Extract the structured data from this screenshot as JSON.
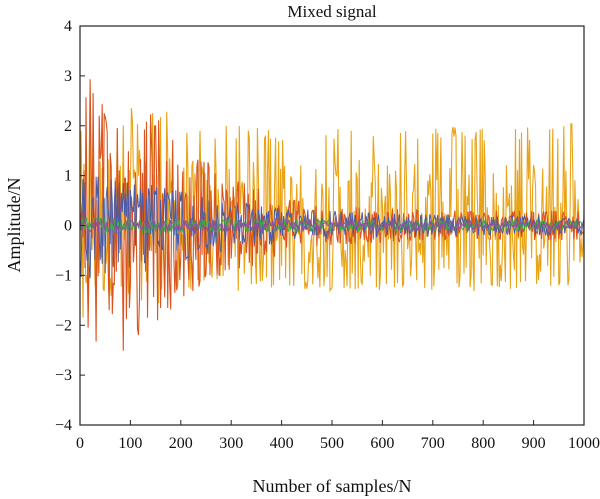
{
  "chart_data": {
    "type": "line",
    "title": "Mixed signal",
    "xlabel": "Number of samples/N",
    "ylabel": "Amplitude/N",
    "xlim": [
      0,
      1000
    ],
    "ylim": [
      -4,
      4
    ],
    "xticks": [
      "0",
      "100",
      "200",
      "300",
      "400",
      "500",
      "600",
      "700",
      "800",
      "900",
      "1000"
    ],
    "yticks": [
      "4",
      "3",
      "2",
      "1",
      "0",
      "−1",
      "−2",
      "−3",
      "−4"
    ],
    "xtick_values": [
      0,
      100,
      200,
      300,
      400,
      500,
      600,
      700,
      800,
      900,
      1000
    ],
    "ytick_values": [
      4,
      3,
      2,
      1,
      0,
      -1,
      -2,
      -3,
      -4
    ],
    "grid": false,
    "legend": "none",
    "series": [
      {
        "color": "#E8A317",
        "description_ranges": "sustained oscillation, peaks near +2 after x=200 and troughs near -1.3",
        "x": [
          0,
          20,
          40,
          60,
          80,
          100,
          120,
          140,
          160,
          180,
          200,
          220,
          240,
          260,
          280,
          300,
          340,
          380,
          420,
          460,
          500,
          540,
          580,
          620,
          660,
          700,
          740,
          780,
          820,
          860,
          900,
          940,
          980,
          1000
        ],
        "y_max": [
          2.8,
          3.0,
          2.8,
          2.2,
          2.0,
          2.4,
          2.2,
          2.4,
          2.5,
          2.2,
          2.1,
          2.0,
          2.0,
          1.9,
          2.0,
          2.0,
          2.0,
          2.0,
          1.9,
          2.0,
          2.0,
          2.0,
          2.0,
          2.0,
          2.0,
          2.0,
          2.0,
          2.0,
          2.0,
          2.0,
          2.0,
          2.0,
          2.2,
          0.9
        ],
        "y_min": [
          -2.0,
          -1.6,
          -1.5,
          -1.4,
          -1.3,
          -1.5,
          -1.6,
          -1.4,
          -1.5,
          -1.3,
          -1.3,
          -1.3,
          -1.3,
          -1.2,
          -1.3,
          -1.3,
          -1.3,
          -1.3,
          -1.3,
          -1.3,
          -1.3,
          -1.3,
          -1.3,
          -1.3,
          -1.3,
          -1.3,
          -1.3,
          -1.3,
          -1.3,
          -1.3,
          -1.3,
          -1.2,
          -1.2,
          -0.5
        ]
      },
      {
        "color": "#D9541E",
        "description_ranges": "decaying oscillation, large at start, shrinking to near 0.3 after x=400",
        "x": [
          0,
          20,
          40,
          60,
          80,
          100,
          120,
          140,
          160,
          180,
          200,
          250,
          300,
          350,
          400,
          500,
          600,
          700,
          800,
          900,
          1000
        ],
        "y_max": [
          2.6,
          3.0,
          2.5,
          2.3,
          2.6,
          2.5,
          2.0,
          2.4,
          2.2,
          1.8,
          1.5,
          1.3,
          1.0,
          0.8,
          0.6,
          0.4,
          0.35,
          0.3,
          0.3,
          0.3,
          0.3
        ],
        "y_min": [
          -2.3,
          -2.2,
          -2.5,
          -2.8,
          -3.1,
          -2.4,
          -2.2,
          -2.0,
          -2.0,
          -1.8,
          -1.6,
          -1.2,
          -1.0,
          -0.8,
          -0.6,
          -0.4,
          -0.35,
          -0.3,
          -0.3,
          -0.3,
          -0.3
        ]
      },
      {
        "color": "#4A5CA8",
        "description_ranges": "moderate decaying oscillation",
        "x": [
          0,
          50,
          100,
          150,
          200,
          300,
          400,
          600,
          800,
          1000
        ],
        "y_max": [
          1.0,
          1.0,
          0.9,
          0.8,
          0.7,
          0.5,
          0.35,
          0.25,
          0.2,
          0.2
        ],
        "y_min": [
          -1.2,
          -1.0,
          -0.9,
          -0.8,
          -0.7,
          -0.5,
          -0.35,
          -0.25,
          -0.2,
          -0.2
        ]
      },
      {
        "color": "#3BAA45",
        "description_ranges": "small oscillation around 0",
        "x": [
          0,
          500,
          1000
        ],
        "y_max": [
          0.15,
          0.12,
          0.1
        ],
        "y_min": [
          -0.15,
          -0.12,
          -0.1
        ]
      },
      {
        "color": "#8E4FA0",
        "description_ranges": "small oscillation around 0",
        "x": [
          0,
          500,
          1000
        ],
        "y_max": [
          0.12,
          0.1,
          0.08
        ],
        "y_min": [
          -0.12,
          -0.1,
          -0.08
        ]
      }
    ]
  }
}
